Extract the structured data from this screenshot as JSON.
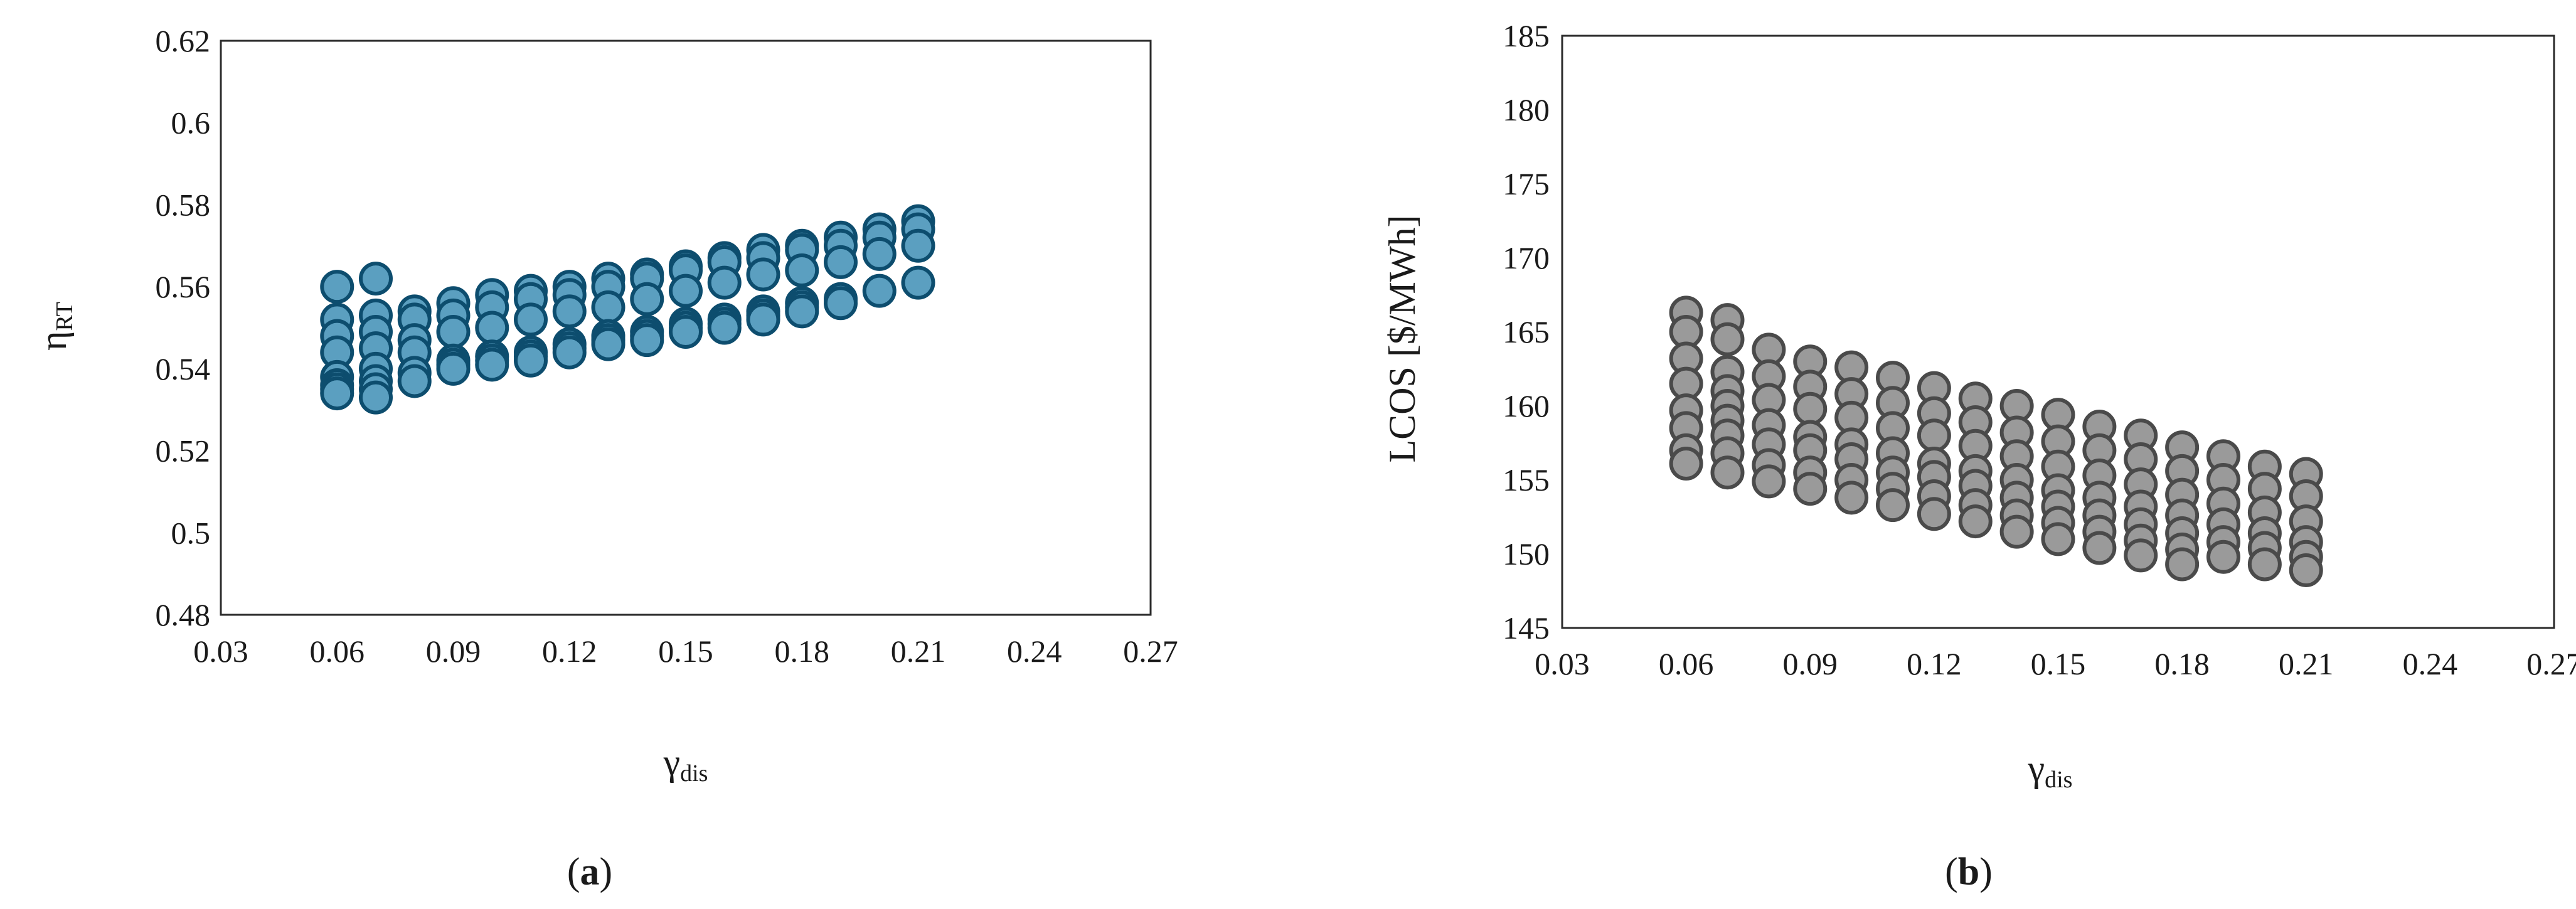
{
  "chart_data": [
    {
      "type": "scatter",
      "panel_label": {
        "open": "(",
        "letter": "a",
        "close": ")"
      },
      "xlabel": {
        "main": "γ",
        "sub": "dis"
      },
      "ylabel": {
        "main": "η",
        "sub": "RT"
      },
      "xlim": [
        0.03,
        0.27
      ],
      "ylim": [
        0.48,
        0.62
      ],
      "xticks": [
        "0.03",
        "0.06",
        "0.09",
        "0.12",
        "0.15",
        "0.18",
        "0.21",
        "0.24",
        "0.27"
      ],
      "yticks": [
        "0.48",
        "0.5",
        "0.52",
        "0.54",
        "0.56",
        "0.58",
        "0.6",
        "0.62"
      ],
      "grid": false,
      "marker_fill": "#5b9fc0",
      "marker_stroke": "#0d4d6e",
      "points": [
        {
          "x": 0.06,
          "ys": [
            0.56,
            0.552,
            0.548,
            0.544,
            0.538,
            0.536,
            0.535,
            0.534
          ]
        },
        {
          "x": 0.07,
          "ys": [
            0.562,
            0.553,
            0.549,
            0.545,
            0.54,
            0.537,
            0.535,
            0.533
          ]
        },
        {
          "x": 0.08,
          "ys": [
            0.554,
            0.552,
            0.547,
            0.544,
            0.539,
            0.537
          ]
        },
        {
          "x": 0.09,
          "ys": [
            0.556,
            0.553,
            0.549,
            0.542,
            0.541,
            0.54
          ]
        },
        {
          "x": 0.1,
          "ys": [
            0.558,
            0.555,
            0.55,
            0.543,
            0.542,
            0.541
          ]
        },
        {
          "x": 0.11,
          "ys": [
            0.559,
            0.557,
            0.552,
            0.544,
            0.543,
            0.542
          ]
        },
        {
          "x": 0.12,
          "ys": [
            0.56,
            0.558,
            0.554,
            0.546,
            0.545,
            0.544
          ]
        },
        {
          "x": 0.13,
          "ys": [
            0.562,
            0.56,
            0.555,
            0.548,
            0.547,
            0.546
          ]
        },
        {
          "x": 0.14,
          "ys": [
            0.563,
            0.562,
            0.557,
            0.549,
            0.548,
            0.547
          ]
        },
        {
          "x": 0.15,
          "ys": [
            0.565,
            0.564,
            0.559,
            0.551,
            0.55,
            0.549
          ]
        },
        {
          "x": 0.16,
          "ys": [
            0.567,
            0.566,
            0.561,
            0.552,
            0.551,
            0.55
          ]
        },
        {
          "x": 0.17,
          "ys": [
            0.569,
            0.567,
            0.563,
            0.554,
            0.553,
            0.552
          ]
        },
        {
          "x": 0.18,
          "ys": [
            0.57,
            0.569,
            0.564,
            0.556,
            0.555,
            0.554
          ]
        },
        {
          "x": 0.19,
          "ys": [
            0.572,
            0.57,
            0.566,
            0.557,
            0.556
          ]
        },
        {
          "x": 0.2,
          "ys": [
            0.574,
            0.572,
            0.568,
            0.559
          ]
        },
        {
          "x": 0.21,
          "ys": [
            0.576,
            0.574,
            0.57,
            0.561
          ]
        }
      ]
    },
    {
      "type": "scatter",
      "panel_label": {
        "open": "(",
        "letter": "b",
        "close": ")"
      },
      "xlabel": {
        "main": "γ",
        "sub": "dis"
      },
      "ylabel": {
        "main": "LCOS [$/MWh]",
        "sub": ""
      },
      "xlim": [
        0.03,
        0.27
      ],
      "ylim": [
        145,
        185
      ],
      "xticks": [
        "0.03",
        "0.06",
        "0.09",
        "0.12",
        "0.15",
        "0.18",
        "0.21",
        "0.24",
        "0.27"
      ],
      "yticks": [
        "145",
        "150",
        "155",
        "160",
        "165",
        "170",
        "175",
        "180",
        "185"
      ],
      "grid": false,
      "marker_fill": "#9a9a9a",
      "marker_stroke": "#4a4a4a",
      "points": [
        {
          "x": 0.06,
          "ys": [
            166.3,
            165.0,
            163.2,
            161.5,
            159.7,
            158.5,
            157.0,
            156.1
          ]
        },
        {
          "x": 0.07,
          "ys": [
            165.8,
            164.5,
            162.3,
            161.0,
            160.0,
            159.0,
            158.0,
            156.8,
            155.5
          ]
        },
        {
          "x": 0.08,
          "ys": [
            163.8,
            162.0,
            160.4,
            158.7,
            157.4,
            156.0,
            154.9
          ]
        },
        {
          "x": 0.09,
          "ys": [
            163.0,
            161.3,
            159.8,
            157.9,
            157.0,
            155.5,
            154.4
          ]
        },
        {
          "x": 0.1,
          "ys": [
            162.6,
            160.8,
            159.2,
            157.4,
            156.4,
            155.0,
            153.8
          ]
        },
        {
          "x": 0.11,
          "ys": [
            161.9,
            160.2,
            158.5,
            156.8,
            155.5,
            154.4,
            153.3
          ]
        },
        {
          "x": 0.12,
          "ys": [
            161.2,
            159.5,
            158.0,
            156.1,
            155.2,
            153.9,
            152.7
          ]
        },
        {
          "x": 0.13,
          "ys": [
            160.5,
            158.9,
            157.3,
            155.6,
            154.6,
            153.3,
            152.2
          ]
        },
        {
          "x": 0.14,
          "ys": [
            160.0,
            158.2,
            156.6,
            155.0,
            153.8,
            152.6,
            151.5
          ]
        },
        {
          "x": 0.15,
          "ys": [
            159.4,
            157.6,
            155.9,
            154.3,
            153.2,
            152.1,
            151.0
          ]
        },
        {
          "x": 0.16,
          "ys": [
            158.6,
            157.0,
            155.3,
            153.8,
            152.6,
            151.5,
            150.4
          ]
        },
        {
          "x": 0.17,
          "ys": [
            158.0,
            156.4,
            154.7,
            153.2,
            152.0,
            150.9,
            149.9
          ]
        },
        {
          "x": 0.18,
          "ys": [
            157.2,
            155.6,
            154.0,
            152.6,
            151.4,
            150.3,
            149.3
          ]
        },
        {
          "x": 0.19,
          "ys": [
            156.6,
            155.0,
            153.4,
            152.0,
            150.8,
            149.8
          ]
        },
        {
          "x": 0.2,
          "ys": [
            155.9,
            154.4,
            152.8,
            151.4,
            150.4,
            149.3
          ]
        },
        {
          "x": 0.21,
          "ys": [
            155.4,
            153.9,
            152.2,
            150.8,
            149.8,
            148.9
          ]
        }
      ]
    }
  ]
}
